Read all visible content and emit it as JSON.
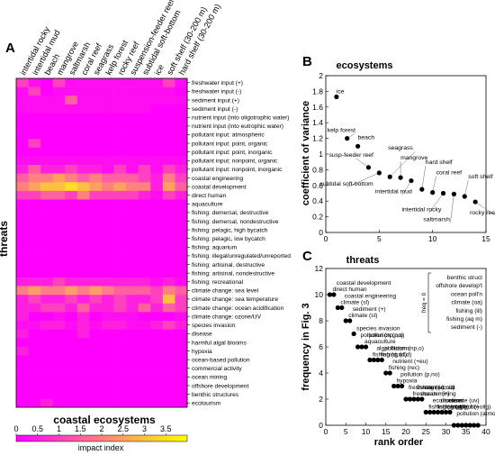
{
  "chart_data": [
    {
      "id": "A",
      "type": "heatmap",
      "panel_letter": "A",
      "xlabel": "coastal ecosystems",
      "ylabel": "threats",
      "columns": [
        "intertidal rocky",
        "intertidal mud",
        "beach",
        "mangrove",
        "saltmarsh",
        "coral reef",
        "seagrass",
        "kelp forest",
        "rocky reef",
        "suspension-feeder reef",
        "subtidal soft-bottom",
        "ice",
        "soft shelf (30-200 m)",
        "hard shelf (30-200 m)"
      ],
      "rows": [
        "freshwater input (+)",
        "freshwater input (-)",
        "sediment input (+)",
        "sediment input (-)",
        "nutrient input (into oligotrophic water)",
        "nutrient input (into eutrophic water)",
        "pollutant input: atmospheric",
        "pollutant input: point, organic",
        "pollutant input: point, inorganic",
        "pollutant input: nonpoint, organic",
        "pollutant input: nonpoint, inorganic",
        "coastal engineering",
        "coastal development",
        "direct human",
        "aquaculture",
        "fishing: demersal, destructive",
        "fishing: demersal, nondestructive",
        "fishing: pelagic, high bycatch",
        "fishing: pelagic, low bycatch",
        "fishing: aquarium",
        "fishing: illegal/unregulated/unreported",
        "fishing: artisinal, destructive",
        "fishing: artisinal, nondestructive",
        "fishing: recreational",
        "climate change: sea level",
        "climate change: sea temperature",
        "climate change: ocean acidification",
        "climate change: ozone/UV",
        "species invasion",
        "disease",
        "harmful algal blooms",
        "hypoxia",
        "ocean-based pollution",
        "commercial activity",
        "ocean mining",
        "offshore development",
        "benthic structures",
        "ecotourism"
      ],
      "values": [
        [
          1.0,
          0.2,
          0,
          1.0,
          0.2,
          0.2,
          0.2,
          0.2,
          0.2,
          0.2,
          0.2,
          0.2,
          1.0,
          0.2
        ],
        [
          0.2,
          1.0,
          0,
          0.2,
          0.2,
          0.2,
          0.2,
          0.2,
          0.2,
          0.2,
          0.2,
          0.2,
          0.2,
          0
        ],
        [
          0.2,
          0.2,
          0.2,
          0.2,
          1.5,
          0.2,
          0.2,
          0.2,
          0.2,
          0.2,
          0.2,
          0.2,
          0.2,
          0.2
        ],
        [
          0.2,
          0.2,
          0.2,
          0.2,
          0.2,
          0.2,
          0.2,
          0.2,
          0.2,
          0.2,
          0.2,
          0,
          0,
          0
        ],
        [
          0,
          0,
          0,
          0,
          0,
          0,
          0,
          0,
          0,
          0,
          0,
          0,
          0,
          0
        ],
        [
          0,
          0,
          0,
          0,
          0,
          0,
          0,
          0,
          0,
          0,
          0,
          0,
          0,
          0
        ],
        [
          0,
          0,
          0,
          0,
          0,
          0,
          0,
          0,
          0,
          0,
          0,
          0,
          0,
          0
        ],
        [
          0,
          1.0,
          0,
          0,
          0,
          0,
          0,
          0,
          0,
          0,
          0,
          0,
          0,
          0
        ],
        [
          0,
          0,
          0,
          0,
          0,
          0,
          0,
          0,
          0,
          0,
          0,
          0,
          0,
          0
        ],
        [
          0.2,
          0.2,
          0.2,
          0.2,
          0.2,
          0.2,
          0.2,
          0.2,
          0.2,
          0.2,
          0.2,
          0.2,
          0.2,
          0.2
        ],
        [
          0.5,
          1.5,
          0.5,
          0.5,
          1.0,
          0.5,
          0.5,
          0.2,
          1.0,
          0.2,
          1.0,
          0.2,
          1.0,
          0.5
        ],
        [
          1.5,
          2.0,
          2.0,
          2.5,
          2.0,
          1.5,
          2.0,
          1.5,
          1.5,
          1.5,
          1.0,
          0.5,
          2.0,
          1.0
        ],
        [
          2.0,
          2.5,
          3.0,
          3.0,
          3.5,
          3.0,
          2.5,
          2.0,
          2.5,
          2.0,
          2.0,
          0.5,
          2.5,
          1.5
        ],
        [
          1.0,
          1.0,
          1.5,
          1.5,
          1.0,
          2.0,
          1.0,
          1.0,
          1.0,
          1.0,
          0.5,
          0.2,
          1.0,
          0.5
        ],
        [
          0,
          0,
          0,
          0,
          0,
          0,
          0,
          0,
          0,
          0,
          0,
          0,
          0,
          0
        ],
        [
          0,
          0,
          0,
          0,
          0,
          0,
          0,
          0,
          0,
          0,
          0,
          0,
          0,
          0
        ],
        [
          0,
          0,
          0,
          0,
          0,
          0,
          0,
          0,
          0,
          0,
          0,
          0,
          0,
          0
        ],
        [
          0,
          0,
          0,
          0,
          0,
          0,
          0,
          0,
          0,
          0,
          0,
          0,
          0,
          0
        ],
        [
          0,
          0,
          0,
          0,
          0,
          0,
          0,
          0,
          0,
          0,
          0,
          0,
          0,
          0
        ],
        [
          0,
          0,
          0,
          0,
          0,
          0,
          0,
          0,
          0,
          0,
          0,
          0,
          0,
          0
        ],
        [
          0,
          0,
          0,
          0,
          0,
          0,
          0,
          0,
          0,
          0,
          0,
          0,
          0,
          0
        ],
        [
          0,
          0,
          0,
          0,
          0,
          0,
          0,
          0,
          0,
          0,
          0,
          0,
          0,
          0
        ],
        [
          0,
          0,
          0,
          0,
          0,
          0,
          0,
          0,
          0,
          0,
          0,
          0,
          0,
          0
        ],
        [
          0.5,
          0.5,
          0.5,
          1.0,
          0.5,
          0.5,
          0.5,
          0.5,
          0.5,
          0.5,
          0.5,
          0.2,
          0.5,
          0.2
        ],
        [
          2.0,
          2.5,
          2.0,
          2.0,
          2.5,
          2.0,
          2.5,
          2.0,
          1.5,
          1.5,
          1.5,
          1.0,
          2.0,
          1.5
        ],
        [
          0.5,
          1.0,
          0.5,
          0.5,
          1.0,
          0.5,
          1.0,
          0.5,
          1.0,
          0.5,
          0.5,
          1.0,
          3.0,
          1.0
        ],
        [
          0.5,
          0.5,
          1.0,
          1.0,
          0.5,
          1.5,
          0.5,
          0.5,
          1.0,
          0.5,
          1.5,
          0.5,
          1.5,
          1.0
        ],
        [
          0.5,
          0,
          0,
          0.2,
          0,
          0.5,
          0,
          0.2,
          0.2,
          0.2,
          0,
          0,
          0,
          0.2
        ],
        [
          0.2,
          0.2,
          0.5,
          0.5,
          0.2,
          0.5,
          0.2,
          0.5,
          0.5,
          0.2,
          0.2,
          0.5,
          1.0,
          0.5
        ],
        [
          0.5,
          0,
          0,
          0,
          0,
          0.5,
          0,
          0,
          0,
          0,
          0,
          0,
          0,
          0
        ],
        [
          0,
          0,
          0,
          0,
          0,
          0,
          0,
          0,
          0,
          0,
          0,
          0,
          0,
          0
        ],
        [
          0.5,
          0,
          0,
          0,
          0,
          0,
          0,
          0,
          0,
          0,
          0,
          0,
          0,
          0
        ],
        [
          0,
          0,
          0,
          0,
          0,
          0,
          0,
          0,
          0,
          0,
          0,
          0,
          0,
          0
        ],
        [
          0,
          0,
          0,
          0,
          0,
          0,
          0,
          0,
          0,
          0,
          0,
          0,
          0,
          0
        ],
        [
          0,
          0,
          0,
          0,
          0,
          0,
          0,
          0,
          0,
          0,
          0,
          0,
          0,
          0
        ],
        [
          0,
          0,
          0,
          0,
          0,
          0,
          0,
          0,
          0,
          0,
          0,
          0,
          0,
          0
        ],
        [
          0,
          0,
          0,
          0,
          0,
          0,
          0,
          0,
          0,
          0,
          0,
          0,
          0,
          0
        ],
        [
          0,
          0,
          0.5,
          0,
          0,
          0,
          0,
          0,
          0,
          0,
          0,
          0,
          0,
          0
        ]
      ],
      "colorbar": {
        "label": "impact index",
        "min": 0,
        "max": 4,
        "ticks": [
          "0",
          "0.5",
          "1",
          "1.5",
          "2",
          "2.5",
          "3",
          "3.5"
        ],
        "colors": [
          "#ff00ff",
          "#ffff00"
        ]
      }
    },
    {
      "id": "B",
      "type": "scatter",
      "panel_letter": "B",
      "title": "ecosystems",
      "xlabel": "",
      "ylabel": "coefficient of variance",
      "xlim": [
        0,
        15
      ],
      "ylim": [
        0,
        2
      ],
      "xticks": [
        "0",
        "5",
        "10",
        "15"
      ],
      "yticks": [
        "0",
        "0.2",
        "0.4",
        "0.6",
        "0.8",
        "1",
        "1.2",
        "1.4",
        "1.6",
        "1.8",
        "2"
      ],
      "points": [
        {
          "x": 1,
          "y": 1.73,
          "label": "ice"
        },
        {
          "x": 2,
          "y": 1.2,
          "label": "kelp forest"
        },
        {
          "x": 3,
          "y": 1.1,
          "label": "beach"
        },
        {
          "x": 4,
          "y": 0.83,
          "label": "susp-feeder reef"
        },
        {
          "x": 5,
          "y": 0.76,
          "label": "subtidal soft-bottom"
        },
        {
          "x": 6,
          "y": 0.71,
          "label": "seagrass"
        },
        {
          "x": 7,
          "y": 0.7,
          "label": "mangrove"
        },
        {
          "x": 8,
          "y": 0.66,
          "label": "intertidal mud"
        },
        {
          "x": 9,
          "y": 0.55,
          "label": "hard shelf"
        },
        {
          "x": 10,
          "y": 0.51,
          "label": "coral reef"
        },
        {
          "x": 11,
          "y": 0.5,
          "label": "intertidal rocky"
        },
        {
          "x": 12,
          "y": 0.49,
          "label": "saltmarsh"
        },
        {
          "x": 13,
          "y": 0.46,
          "label": "soft shelf"
        },
        {
          "x": 14,
          "y": 0.39,
          "label": "rocky reef"
        }
      ]
    },
    {
      "id": "C",
      "type": "scatter",
      "panel_letter": "C",
      "title": "threats",
      "xlabel": "rank order",
      "ylabel": "frequency in Fig. 3",
      "xlim": [
        0,
        40
      ],
      "ylim": [
        0,
        12
      ],
      "xticks": [
        "0",
        "5",
        "10",
        "15",
        "20",
        "25",
        "30",
        "35",
        "40"
      ],
      "yticks": [
        "0",
        "2",
        "4",
        "6",
        "8",
        "10",
        "12"
      ],
      "points": [
        {
          "x": 1,
          "y": 10,
          "label": "direct human"
        },
        {
          "x": 2,
          "y": 10,
          "label": "coastal development"
        },
        {
          "x": 3,
          "y": 9,
          "label": "climate (sl)"
        },
        {
          "x": 4,
          "y": 9,
          "label": "coastal engineering"
        },
        {
          "x": 5,
          "y": 8,
          "label": "climate (st)"
        },
        {
          "x": 6,
          "y": 8,
          "label": "sediment (+)"
        },
        {
          "x": 7,
          "y": 7,
          "label": "species invasion"
        },
        {
          "x": 8,
          "y": 6,
          "label": "pollution (np,no)"
        },
        {
          "x": 9,
          "y": 6,
          "label": "aquaculture"
        },
        {
          "x": 10,
          "y": 6,
          "label": "pollution (p,o)"
        },
        {
          "x": 11,
          "y": 5,
          "label": "fishing (d,nd)"
        },
        {
          "x": 12,
          "y": 5,
          "label": "algal blooms"
        },
        {
          "x": 13,
          "y": 5,
          "label": "fishing (d,d)"
        },
        {
          "x": 14,
          "y": 5,
          "label": "pollution (np,o)"
        },
        {
          "x": 15,
          "y": 4,
          "label": "fishing (rec)"
        },
        {
          "x": 16,
          "y": 4,
          "label": "nutrient (+eu)"
        },
        {
          "x": 17,
          "y": 3,
          "label": "hypoxia"
        },
        {
          "x": 18,
          "y": 3,
          "label": "pollution (p,no)"
        },
        {
          "x": 19,
          "y": 3,
          "label": ""
        },
        {
          "x": 20,
          "y": 2,
          "label": "freshwater (-)"
        },
        {
          "x": 21,
          "y": 2,
          "label": "freshwater (+)"
        },
        {
          "x": 22,
          "y": 2,
          "label": "fishing (art,nd)"
        },
        {
          "x": 23,
          "y": 2,
          "label": "ocean mining"
        },
        {
          "x": 24,
          "y": 2,
          "label": "commercial"
        },
        {
          "x": 25,
          "y": 1,
          "label": "fishing (art,d)"
        },
        {
          "x": 26,
          "y": 1,
          "label": "eco-tourism"
        },
        {
          "x": 27,
          "y": 1,
          "label": "fishing (p,lb)"
        },
        {
          "x": 28,
          "y": 1,
          "label": "disease"
        },
        {
          "x": 29,
          "y": 1,
          "label": "fishing (p,hb)"
        },
        {
          "x": 30,
          "y": 1,
          "label": "climate (uv)"
        },
        {
          "x": 31,
          "y": 1,
          "label": "nutrient (+olig)"
        },
        {
          "x": 32,
          "y": 0,
          "label": "pollution (atmo)"
        },
        {
          "x": 33,
          "y": 0,
          "label": ""
        },
        {
          "x": 34,
          "y": 0,
          "label": ""
        },
        {
          "x": 35,
          "y": 0,
          "label": ""
        },
        {
          "x": 36,
          "y": 0,
          "label": ""
        },
        {
          "x": 37,
          "y": 0,
          "label": ""
        },
        {
          "x": 38,
          "y": 0,
          "label": ""
        }
      ],
      "legend_box": {
        "freq_label": "freq = 0",
        "items": [
          "benthic struct",
          "offshore develop't",
          "ocean poll'n",
          "climate (oa)",
          "fishing (ill)",
          "fishing (aq m)",
          "sediment (-)"
        ]
      }
    }
  ]
}
